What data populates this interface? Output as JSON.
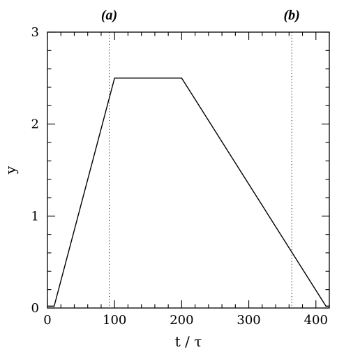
{
  "chart_data": {
    "type": "line",
    "title": "",
    "xlabel": "t / τ",
    "ylabel": "y",
    "xlim": [
      0,
      420
    ],
    "ylim": [
      0,
      3
    ],
    "grid": false,
    "x_ticks": [
      0,
      100,
      200,
      300,
      400
    ],
    "y_ticks": [
      0,
      1,
      2,
      3
    ],
    "x_tick_labels": [
      "0",
      "100",
      "200",
      "300",
      "400"
    ],
    "y_tick_labels": [
      "0",
      "1",
      "2",
      "3"
    ],
    "series": [
      {
        "x": [
          0,
          10,
          100,
          200,
          415,
          420
        ],
        "y": [
          0.02,
          0.02,
          2.5,
          2.5,
          0.02,
          0.02
        ]
      }
    ],
    "annotations": [
      {
        "label": "(a)",
        "x": 92
      },
      {
        "label": "(b)",
        "x": 364
      }
    ]
  }
}
